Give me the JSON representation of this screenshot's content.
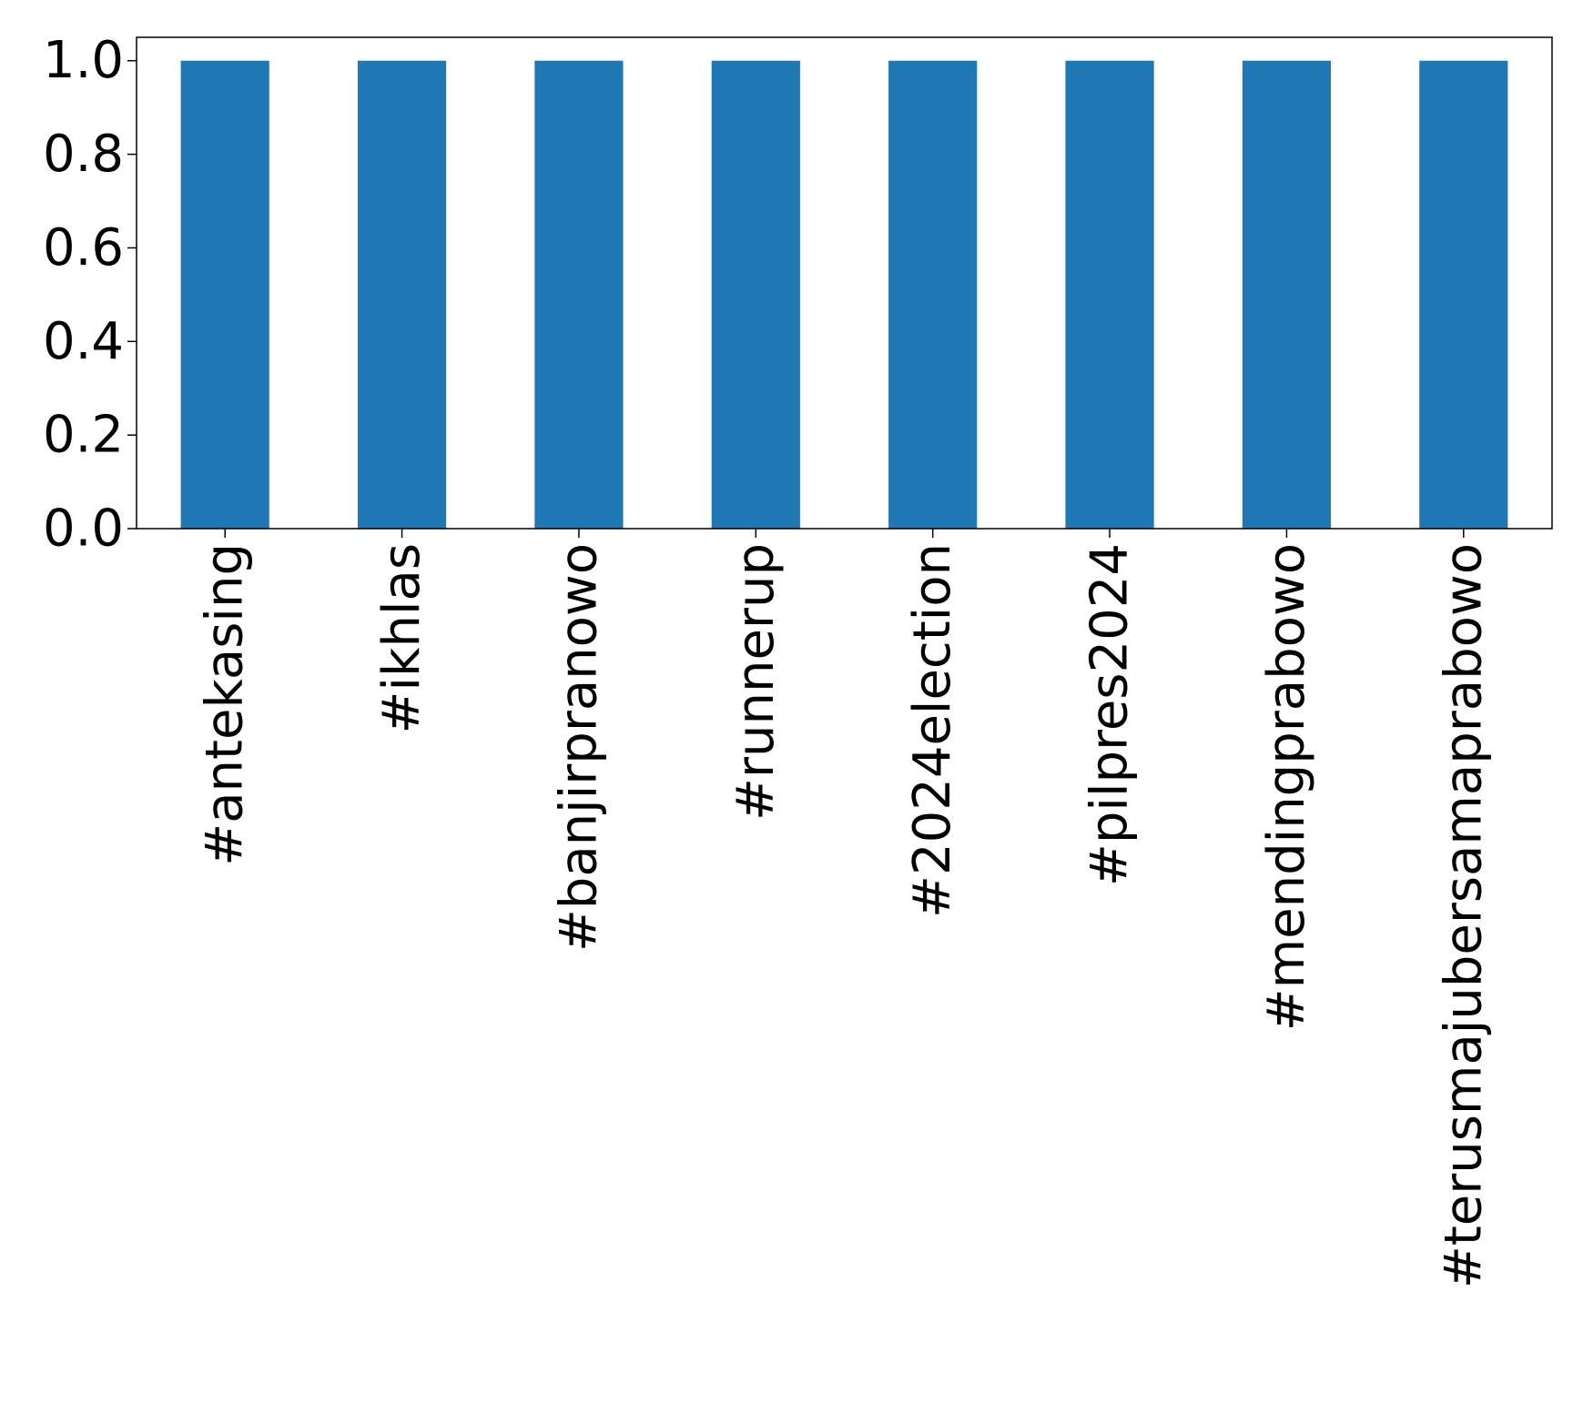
{
  "chart_data": {
    "type": "bar",
    "categories": [
      "#antekasing",
      "#ikhlas",
      "#banjirpranowo",
      "#runnerup",
      "#2024election",
      "#pilpres2024",
      "#mendingprabowo",
      "#terusmajubersamaprabowo"
    ],
    "values": [
      1.0,
      1.0,
      1.0,
      1.0,
      1.0,
      1.0,
      1.0,
      1.0
    ],
    "yticks": [
      "0.0",
      "0.2",
      "0.4",
      "0.6",
      "0.8",
      "1.0"
    ],
    "ylim": [
      0,
      1.05
    ],
    "grid": false,
    "legend": "none",
    "colors": {
      "bar": "#1f77b4"
    }
  }
}
